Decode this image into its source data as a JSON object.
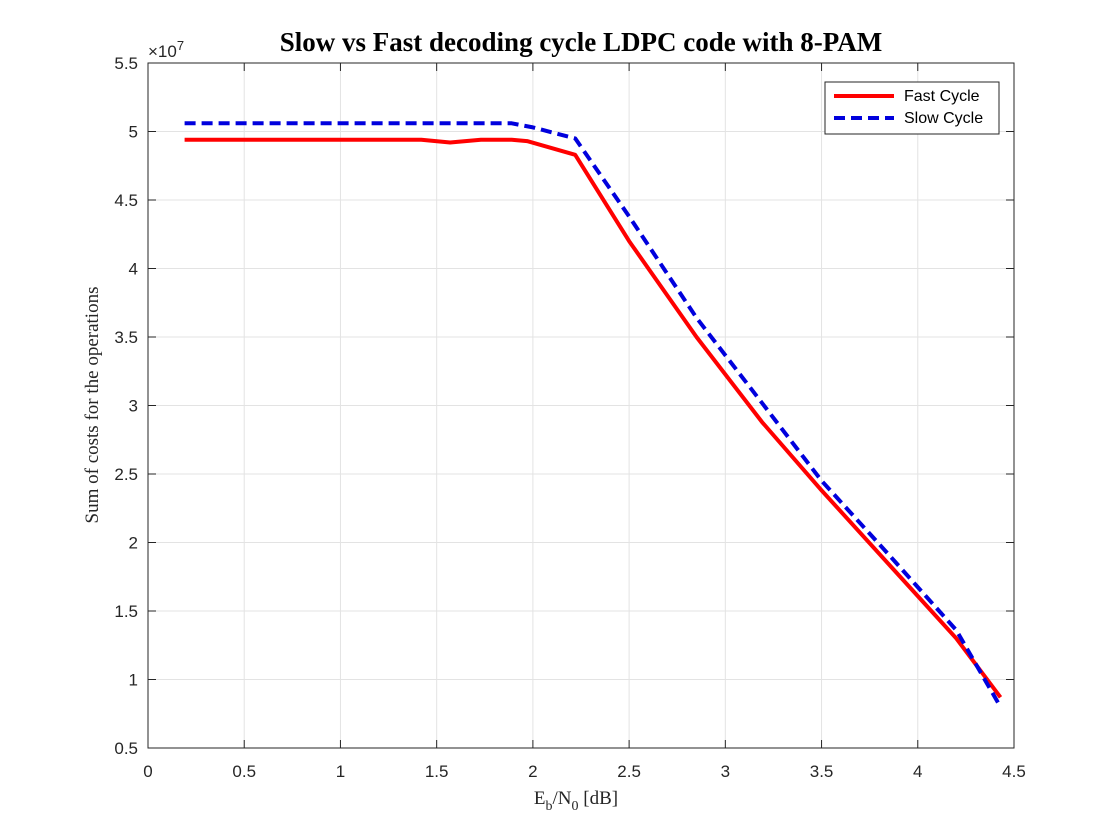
{
  "figure": {
    "title": "Slow vs Fast decoding cycle LDPC code with 8-PAM",
    "exponent": "×10",
    "exponent_power": "7"
  },
  "chart_data": {
    "type": "line",
    "title": "Slow vs Fast decoding cycle LDPC code with 8-PAM",
    "xlabel_main": "E",
    "xlabel_sub1": "b",
    "xlabel_mid": "/N",
    "xlabel_sub2": "0",
    "xlabel_tail": " [dB]",
    "ylabel": "Sum of costs for the operations",
    "xlim": [
      0,
      4.5
    ],
    "ylim": [
      0.5,
      5.5
    ],
    "y_multiplier": "1e7",
    "xticks": [
      0,
      0.5,
      1,
      1.5,
      2,
      2.5,
      3,
      3.5,
      4,
      4.5
    ],
    "xtick_labels": [
      "0",
      "0.5",
      "1",
      "1.5",
      "2",
      "2.5",
      "3",
      "3.5",
      "4",
      "4.5"
    ],
    "yticks": [
      0.5,
      1,
      1.5,
      2,
      2.5,
      3,
      3.5,
      4,
      4.5,
      5,
      5.5
    ],
    "ytick_labels": [
      "0.5",
      "1",
      "1.5",
      "2",
      "2.5",
      "3",
      "3.5",
      "4",
      "4.5",
      "5",
      "5.5"
    ],
    "grid": true,
    "legend_position": "top-right",
    "series": [
      {
        "name": "Fast Cycle",
        "color": "#ff0000",
        "style": "solid",
        "x": [
          0.19,
          0.5,
          1.0,
          1.42,
          1.57,
          1.73,
          1.89,
          1.97,
          2.22,
          2.5,
          2.85,
          3.19,
          3.5,
          3.85,
          4.2,
          4.43
        ],
        "y": [
          4.94,
          4.94,
          4.94,
          4.94,
          4.92,
          4.94,
          4.94,
          4.93,
          4.83,
          4.2,
          3.5,
          2.88,
          2.38,
          1.84,
          1.3,
          0.87
        ]
      },
      {
        "name": "Slow Cycle",
        "color": "#0000dd",
        "style": "dashed",
        "x": [
          0.19,
          0.5,
          1.0,
          1.5,
          1.89,
          2.0,
          2.22,
          2.5,
          2.85,
          3.19,
          3.5,
          3.85,
          4.2,
          4.43
        ],
        "y": [
          5.06,
          5.06,
          5.06,
          5.06,
          5.06,
          5.03,
          4.95,
          4.38,
          3.64,
          3.02,
          2.45,
          1.91,
          1.36,
          0.8
        ]
      }
    ]
  }
}
